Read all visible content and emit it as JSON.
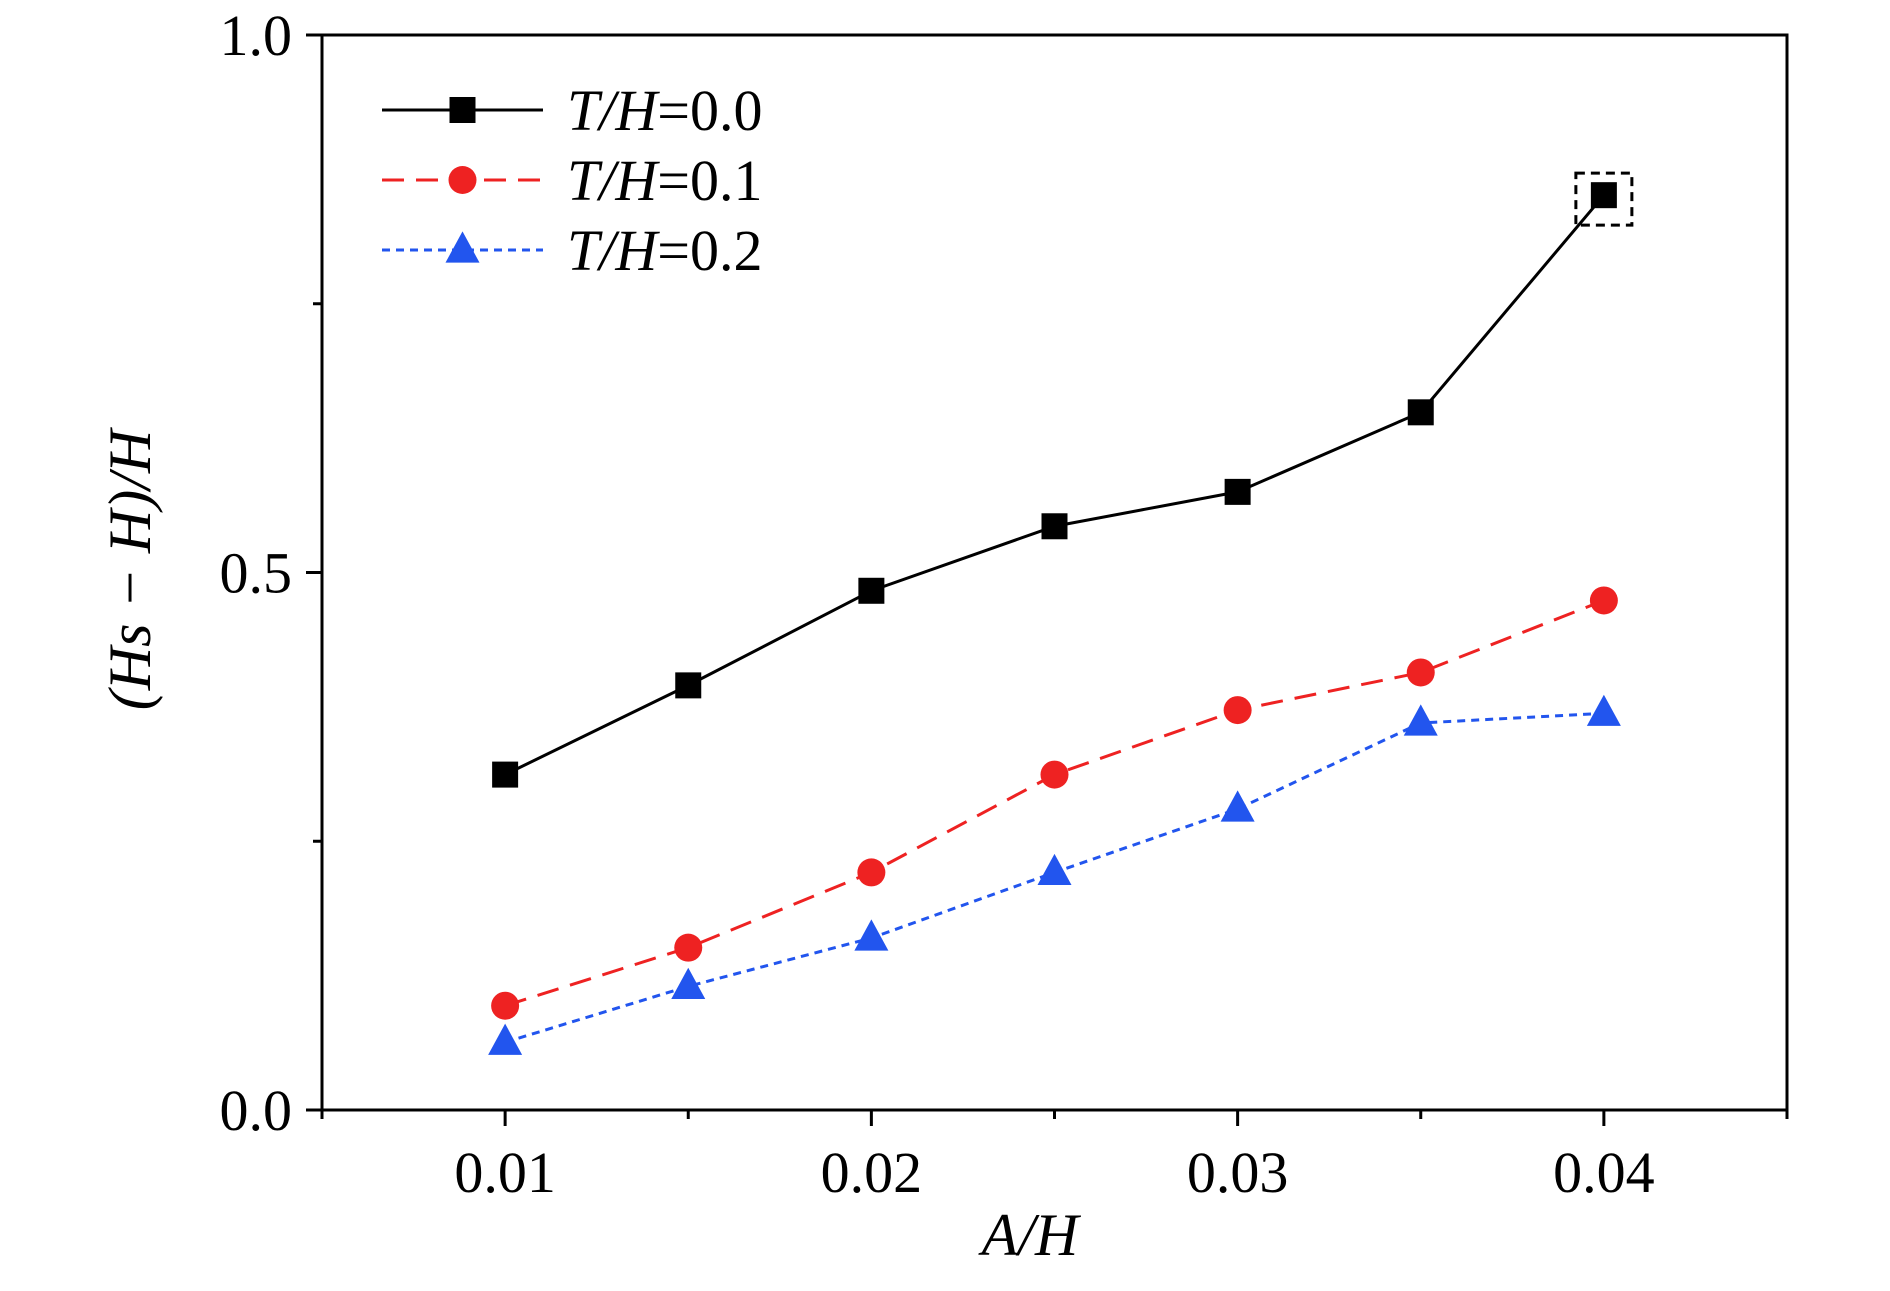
{
  "chart_data": {
    "type": "line",
    "xlabel": "A/H",
    "ylabel": "(Hs − H)/H",
    "xlim": [
      0.005,
      0.045
    ],
    "ylim": [
      0.0,
      1.0
    ],
    "xticks": [
      0.01,
      0.02,
      0.03,
      0.04
    ],
    "xtick_labels": [
      "0.01",
      "0.02",
      "0.03",
      "0.04"
    ],
    "xminor": [
      0.005,
      0.015,
      0.025,
      0.035,
      0.045
    ],
    "yticks": [
      0.0,
      0.5,
      1.0
    ],
    "ytick_labels": [
      "0.0",
      "0.5",
      "1.0"
    ],
    "yminor": [
      0.25,
      0.75
    ],
    "grid": false,
    "legend_position": "top-left",
    "series": [
      {
        "name": "T/H=0.0",
        "name_italic": "T/H",
        "name_value": "=0.0",
        "color": "#000000",
        "line_style": "solid",
        "marker": "square",
        "x": [
          0.01,
          0.015,
          0.02,
          0.025,
          0.03,
          0.035,
          0.04
        ],
        "y": [
          0.312,
          0.395,
          0.483,
          0.543,
          0.575,
          0.649,
          0.851
        ]
      },
      {
        "name": "T/H=0.1",
        "name_italic": "T/H",
        "name_value": "=0.1",
        "color": "#ee2222",
        "line_style": "dashed",
        "marker": "circle",
        "x": [
          0.01,
          0.015,
          0.02,
          0.025,
          0.03,
          0.035,
          0.04
        ],
        "y": [
          0.097,
          0.151,
          0.221,
          0.312,
          0.372,
          0.407,
          0.474
        ]
      },
      {
        "name": "T/H=0.2",
        "name_italic": "T/H",
        "name_value": "=0.2",
        "color": "#2255ee",
        "line_style": "dotted",
        "marker": "triangle",
        "x": [
          0.01,
          0.015,
          0.02,
          0.025,
          0.03,
          0.035,
          0.04
        ],
        "y": [
          0.063,
          0.115,
          0.16,
          0.221,
          0.28,
          0.36,
          0.369
        ]
      }
    ],
    "annotations": [
      {
        "type": "dashed-box",
        "series": "T/H=0.0",
        "x": 0.04,
        "y": 0.851
      }
    ]
  }
}
